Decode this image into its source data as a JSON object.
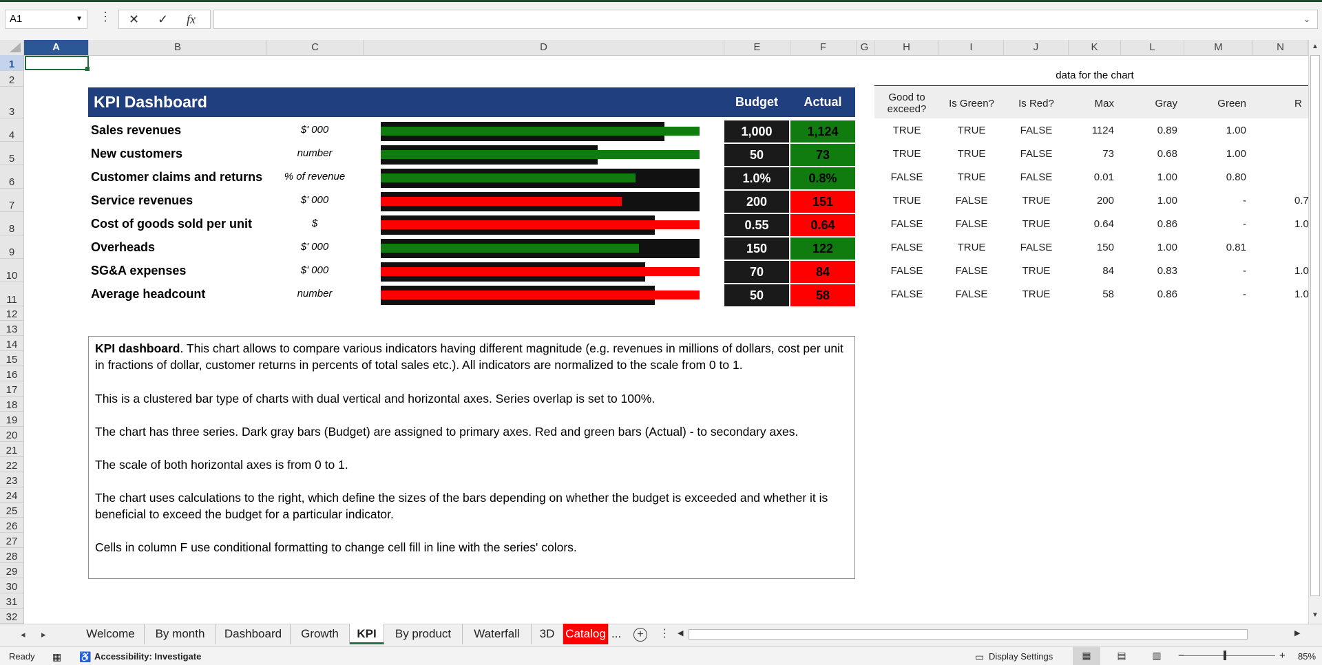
{
  "formula_bar": {
    "name_box": "A1",
    "cancel_icon": "✕",
    "enter_icon": "✓",
    "fx_label": "fx",
    "formula": ""
  },
  "columns": [
    "A",
    "B",
    "C",
    "D",
    "E",
    "F",
    "G",
    "H",
    "I",
    "J",
    "K",
    "L",
    "M",
    "N"
  ],
  "rows": [
    "1",
    "2",
    "3",
    "4",
    "5",
    "6",
    "7",
    "8",
    "9",
    "10",
    "11",
    "12",
    "13",
    "14",
    "15",
    "16",
    "17",
    "18",
    "19",
    "20",
    "21",
    "22",
    "23",
    "24",
    "25",
    "26",
    "27",
    "28",
    "29",
    "30",
    "31",
    "32"
  ],
  "dashboard": {
    "title": "KPI Dashboard",
    "budget_header": "Budget",
    "actual_header": "Actual",
    "colors": {
      "header": "#1f3f7f",
      "budget_bar": "#111111",
      "green": "#107c10",
      "red": "#ff0000"
    },
    "kpis": [
      {
        "name": "Sales revenues",
        "unit": "$' 000",
        "budget": "1,000",
        "actual": "1,124",
        "status": "green",
        "gray": 0.89,
        "actual_level": 1.0
      },
      {
        "name": "New customers",
        "unit": "number",
        "budget": "50",
        "actual": "73",
        "status": "green",
        "gray": 0.68,
        "actual_level": 1.0
      },
      {
        "name": "Customer claims and returns",
        "unit": "% of revenue",
        "budget": "1.0%",
        "actual": "0.8%",
        "status": "green",
        "gray": 1.0,
        "actual_level": 0.8
      },
      {
        "name": "Service revenues",
        "unit": "$' 000",
        "budget": "200",
        "actual": "151",
        "status": "red",
        "gray": 1.0,
        "actual_level": 0.755
      },
      {
        "name": "Cost of goods sold per unit",
        "unit": "$",
        "budget": "0.55",
        "actual": "0.64",
        "status": "red",
        "gray": 0.86,
        "actual_level": 1.0
      },
      {
        "name": "Overheads",
        "unit": "$' 000",
        "budget": "150",
        "actual": "122",
        "status": "green",
        "gray": 1.0,
        "actual_level": 0.81
      },
      {
        "name": "SG&A expenses",
        "unit": "$' 000",
        "budget": "70",
        "actual": "84",
        "status": "red",
        "gray": 0.83,
        "actual_level": 1.0
      },
      {
        "name": "Average headcount",
        "unit": "number",
        "budget": "50",
        "actual": "58",
        "status": "red",
        "gray": 0.86,
        "actual_level": 1.0
      }
    ]
  },
  "chart_data_table": {
    "title": "data for the chart",
    "headers": [
      "Good to exceed?",
      "Is Green?",
      "Is Red?",
      "Max",
      "Gray",
      "Green",
      "R"
    ],
    "rows": [
      [
        "TRUE",
        "TRUE",
        "FALSE",
        "1124",
        "0.89",
        "1.00",
        ""
      ],
      [
        "TRUE",
        "TRUE",
        "FALSE",
        "73",
        "0.68",
        "1.00",
        ""
      ],
      [
        "FALSE",
        "TRUE",
        "FALSE",
        "0.01",
        "1.00",
        "0.80",
        ""
      ],
      [
        "TRUE",
        "FALSE",
        "TRUE",
        "200",
        "1.00",
        "-",
        "0.7"
      ],
      [
        "FALSE",
        "FALSE",
        "TRUE",
        "0.64",
        "0.86",
        "-",
        "1.0"
      ],
      [
        "FALSE",
        "TRUE",
        "FALSE",
        "150",
        "1.00",
        "0.81",
        ""
      ],
      [
        "FALSE",
        "FALSE",
        "TRUE",
        "84",
        "0.83",
        "-",
        "1.0"
      ],
      [
        "FALSE",
        "FALSE",
        "TRUE",
        "58",
        "0.86",
        "-",
        "1.0"
      ]
    ]
  },
  "note": {
    "bold_lead": "KPI dashboard",
    "p1": ". This chart allows to compare various indicators having different magnitude (e.g. revenues in millions of dollars, cost per unit in fractions of dollar, customer returns in percents of total sales etc.). All indicators are normalized to the scale from 0 to 1.",
    "p2": "This is a clustered bar type of charts with dual vertical and horizontal axes. Series overlap is set to 100%.",
    "p3": "The chart has three series. Dark gray bars (Budget) are assigned to primary axes. Red and green bars (Actual) - to secondary axes.",
    "p4": "The scale of both horizontal axes is from 0 to 1.",
    "p5": "The chart uses calculations to the right, which define the sizes of the bars depending on whether the budget is exceeded and whether it is beneficial to exceed the budget for a particular indicator.",
    "p6": "Cells in column F use conditional formatting to change cell fill in line with the series' colors."
  },
  "tabs": [
    "Welcome",
    "By month",
    "Dashboard",
    "Growth",
    "KPI",
    "By product",
    "Waterfall",
    "3D",
    "Catalog"
  ],
  "active_tab": "KPI",
  "tab_more": "...",
  "add_sheet": "+",
  "status": {
    "ready": "Ready",
    "accessibility": "Accessibility: Investigate",
    "display_settings": "Display Settings",
    "zoom_minus": "−",
    "zoom_plus": "+",
    "zoom": "85%"
  }
}
